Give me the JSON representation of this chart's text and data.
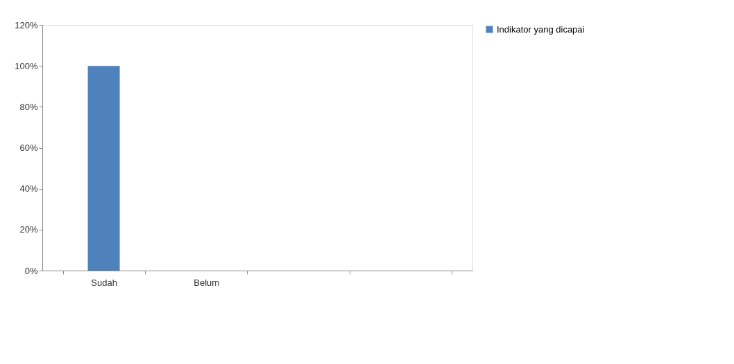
{
  "chart_data": {
    "type": "bar",
    "categories": [
      "Sudah",
      "Belum",
      null,
      null
    ],
    "series": [
      {
        "name": "Indikator yang dicapai",
        "color": "#4f81bd",
        "values": [
          100,
          0,
          null,
          null
        ]
      }
    ],
    "ylim": [
      0,
      120
    ],
    "yticks": [
      {
        "value": 0,
        "label": "0%"
      },
      {
        "value": 20,
        "label": "20%"
      },
      {
        "value": 40,
        "label": "40%"
      },
      {
        "value": 60,
        "label": "60%"
      },
      {
        "value": 80,
        "label": "80%"
      },
      {
        "value": 100,
        "label": "100%"
      },
      {
        "value": 120,
        "label": "120%"
      }
    ],
    "grid": false,
    "legend": "right"
  }
}
